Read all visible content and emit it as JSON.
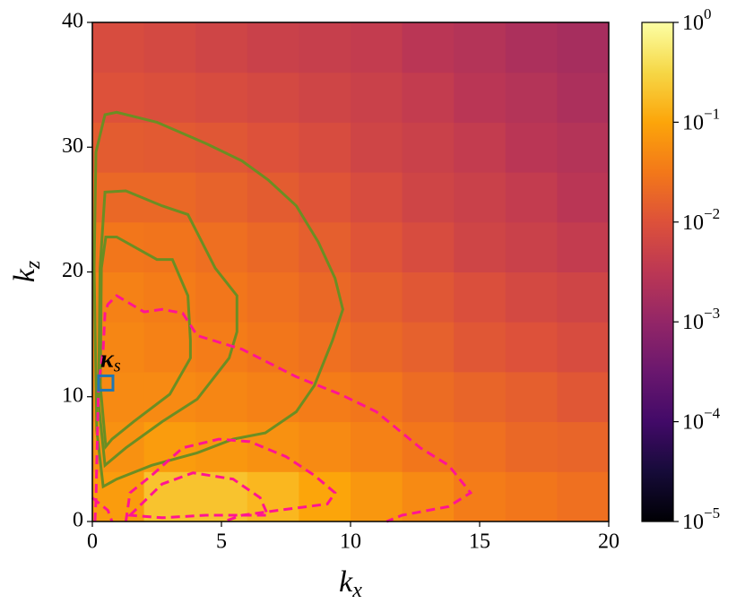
{
  "chart_data": {
    "type": "heatmap",
    "xlabel": {
      "text": "k",
      "sub": "x"
    },
    "ylabel": {
      "text": "k",
      "sub": "z"
    },
    "xlim": [
      0,
      20
    ],
    "ylim": [
      0,
      40
    ],
    "xticks": [
      0,
      5,
      10,
      15,
      20
    ],
    "yticks": [
      0,
      10,
      20,
      30,
      40
    ],
    "colormap": "inferno",
    "log_color": true,
    "clim": [
      1e-05,
      1
    ],
    "cticks": [
      {
        "value": 1e-05,
        "label": "10",
        "exponent": "−5"
      },
      {
        "value": 0.0001,
        "label": "10",
        "exponent": "−4"
      },
      {
        "value": 0.001,
        "label": "10",
        "exponent": "−3"
      },
      {
        "value": 0.01,
        "label": "10",
        "exponent": "−2"
      },
      {
        "value": 0.1,
        "label": "10",
        "exponent": "−1"
      },
      {
        "value": 1,
        "label": "10",
        "exponent": "0"
      }
    ],
    "xbins": [
      0,
      2,
      4,
      6,
      8,
      10,
      12,
      14,
      16,
      18,
      20
    ],
    "ybins": [
      0,
      4,
      8,
      12,
      16,
      20,
      24,
      28,
      32,
      36,
      40
    ],
    "values": [
      [
        0.08,
        0.2,
        0.2,
        0.15,
        0.1,
        0.07,
        0.05,
        0.035,
        0.03,
        0.025
      ],
      [
        0.06,
        0.08,
        0.07,
        0.06,
        0.05,
        0.04,
        0.03,
        0.025,
        0.02,
        0.018
      ],
      [
        0.05,
        0.05,
        0.045,
        0.04,
        0.035,
        0.03,
        0.022,
        0.018,
        0.015,
        0.012
      ],
      [
        0.045,
        0.04,
        0.035,
        0.03,
        0.025,
        0.02,
        0.016,
        0.012,
        0.01,
        0.008
      ],
      [
        0.04,
        0.035,
        0.03,
        0.025,
        0.02,
        0.015,
        0.012,
        0.009,
        0.007,
        0.006
      ],
      [
        0.03,
        0.028,
        0.024,
        0.02,
        0.015,
        0.011,
        0.008,
        0.006,
        0.005,
        0.004
      ],
      [
        0.02,
        0.02,
        0.017,
        0.014,
        0.011,
        0.008,
        0.006,
        0.005,
        0.004,
        0.003
      ],
      [
        0.014,
        0.013,
        0.012,
        0.01,
        0.008,
        0.006,
        0.005,
        0.004,
        0.003,
        0.0025
      ],
      [
        0.01,
        0.009,
        0.008,
        0.007,
        0.006,
        0.005,
        0.004,
        0.003,
        0.0025,
        0.002
      ],
      [
        0.008,
        0.007,
        0.006,
        0.005,
        0.0045,
        0.004,
        0.003,
        0.0025,
        0.002,
        0.0017
      ]
    ],
    "contours": [
      {
        "color": "#6b8e23",
        "style": "solid",
        "closed": true,
        "x": [
          0.49,
          0.94,
          2.5,
          4.4,
          5.8,
          6.8,
          7.9,
          8.75,
          9.4,
          9.7,
          9.3,
          8.6,
          7.9,
          6.7,
          5.45,
          4.06,
          2.3,
          0.94,
          0.42,
          0.17,
          0.07,
          0.14
        ],
        "y": [
          32.6,
          32.8,
          32,
          30.3,
          28.9,
          27.4,
          25.3,
          22.4,
          19.5,
          17,
          14.5,
          10.9,
          8.8,
          7.1,
          6.6,
          5.5,
          4.5,
          3.4,
          2.8,
          7.3,
          20.3,
          29.6
        ]
      },
      {
        "color": "#6b8e23",
        "style": "solid",
        "closed": true,
        "x": [
          0.49,
          1.3,
          2.7,
          3.7,
          4.76,
          5.6,
          5.6,
          5.3,
          4.06,
          2.7,
          1.3,
          0.49,
          0.24,
          0.3
        ],
        "y": [
          26.4,
          26.5,
          25.3,
          24.6,
          20.3,
          18.1,
          15.2,
          13.1,
          9.8,
          8,
          5.9,
          4.5,
          9.5,
          20.3
        ]
      },
      {
        "color": "#6b8e23",
        "style": "solid",
        "closed": true,
        "x": [
          0.52,
          0.94,
          2.5,
          3.1,
          3.7,
          3.8,
          3.8,
          3.0,
          1.6,
          0.76,
          0.52,
          0.31,
          0.35
        ],
        "y": [
          22.8,
          22.8,
          21,
          21,
          18.1,
          14.5,
          13.1,
          10.2,
          8,
          6.6,
          6,
          10.9,
          20.3
        ]
      },
      {
        "color": "#ff1493",
        "style": "dashed",
        "closed": false,
        "x": [
          0.1,
          0.14,
          0.24,
          0.42,
          0.49,
          0.6,
          0.94,
          2,
          2.7,
          3.5,
          4.06,
          5.8,
          7.9,
          9.6,
          11,
          12.7,
          13.8,
          14.65,
          13.8,
          12,
          11.4
        ],
        "y": [
          0,
          1.6,
          10.9,
          13.8,
          16.7,
          17.4,
          18.1,
          16.8,
          17,
          16.7,
          14.9,
          13.8,
          11.6,
          10.2,
          8.8,
          5.9,
          4.5,
          2.3,
          1.2,
          0.5,
          0
        ]
      },
      {
        "color": "#ff1493",
        "style": "dashed",
        "closed": false,
        "x": [
          1.3,
          1.46,
          2.3,
          3.5,
          4.9,
          6.1,
          7.5,
          8.6,
          9.4,
          9.1,
          7.2,
          5.8,
          5.1
        ],
        "y": [
          0,
          2.3,
          3.7,
          5.9,
          6.6,
          6.4,
          5.2,
          3.7,
          2.3,
          1.4,
          0.9,
          0.5,
          0
        ]
      },
      {
        "color": "#ff1493",
        "style": "dashed",
        "closed": true,
        "x": [
          1.46,
          2.7,
          3.9,
          5.45,
          6.5,
          6.8,
          4.4,
          2.7
        ],
        "y": [
          0.5,
          3,
          3.9,
          3.4,
          1.9,
          0.5,
          0.5,
          0.3
        ]
      },
      {
        "color": "#ff1493",
        "style": "dashed",
        "closed": false,
        "x": [
          0,
          0.6,
          0.76
        ],
        "y": [
          1.9,
          0.9,
          0
        ]
      }
    ],
    "annotation": {
      "text": "κ",
      "sub": "s",
      "x": 0.52,
      "y": 11.1,
      "color": "#1f77b4"
    }
  }
}
